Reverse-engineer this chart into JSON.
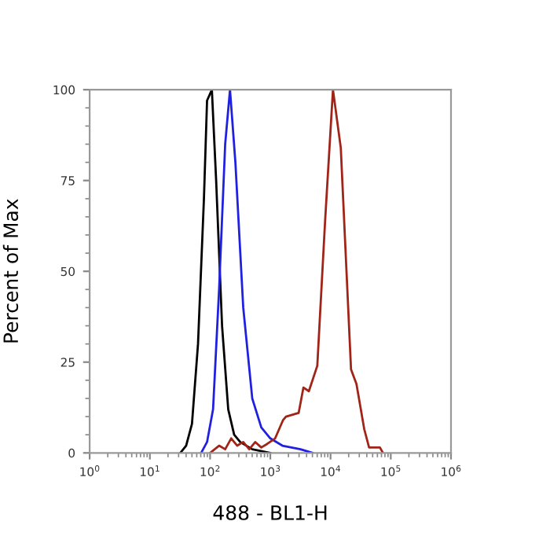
{
  "chart_data": {
    "type": "line",
    "xlabel": "488 - BL1-H",
    "ylabel": "Percent of Max",
    "log": "x",
    "xlim": [
      1,
      1000000
    ],
    "xticks": [
      {
        "value": 1,
        "label": "10$^{0}$"
      },
      {
        "value": 10,
        "label": "10$^{1}$"
      },
      {
        "value": 100,
        "label": "10$^{2}$"
      },
      {
        "value": 1000,
        "label": "10$^{3}$"
      },
      {
        "value": 10000,
        "label": "10$^{4}$"
      },
      {
        "value": 100000,
        "label": "10$^{5}$"
      },
      {
        "value": 1000000,
        "label": "10$^{6}$"
      }
    ],
    "ylim": [
      0,
      100
    ],
    "yticks": [
      0,
      25,
      50,
      75,
      100
    ],
    "grid": false,
    "series": [
      {
        "color": "#000000",
        "x": [
          32,
          40,
          50,
          63,
          79,
          89,
          107,
          126,
          158,
          200,
          251,
          316,
          501,
          1000
        ],
        "values": [
          0,
          2,
          8,
          30,
          70,
          97,
          100,
          75,
          35,
          12,
          5,
          3,
          1,
          0
        ]
      },
      {
        "color": "#2020e0",
        "x": [
          71,
          89,
          112,
          141,
          178,
          214,
          263,
          355,
          501,
          708,
          1000,
          1585,
          3162,
          5012
        ],
        "values": [
          0,
          3,
          12,
          45,
          85,
          100,
          80,
          40,
          15,
          7,
          4,
          2,
          1,
          0
        ]
      },
      {
        "color": "#a02418",
        "x": [
          100,
          141,
          178,
          224,
          282,
          355,
          447,
          562,
          708,
          891,
          1202,
          1622,
          1820,
          2951,
          3548,
          4365,
          6026,
          8128,
          10965,
          14791,
          21878,
          26915,
          36308,
          43652,
          66069,
          74131
        ],
        "values": [
          0,
          2,
          1,
          4,
          2,
          3,
          1,
          3,
          1.5,
          2.5,
          4,
          9,
          10,
          11,
          18,
          17,
          24,
          64,
          100,
          84,
          23,
          19,
          6.5,
          1.5,
          1.5,
          0
        ]
      }
    ]
  }
}
